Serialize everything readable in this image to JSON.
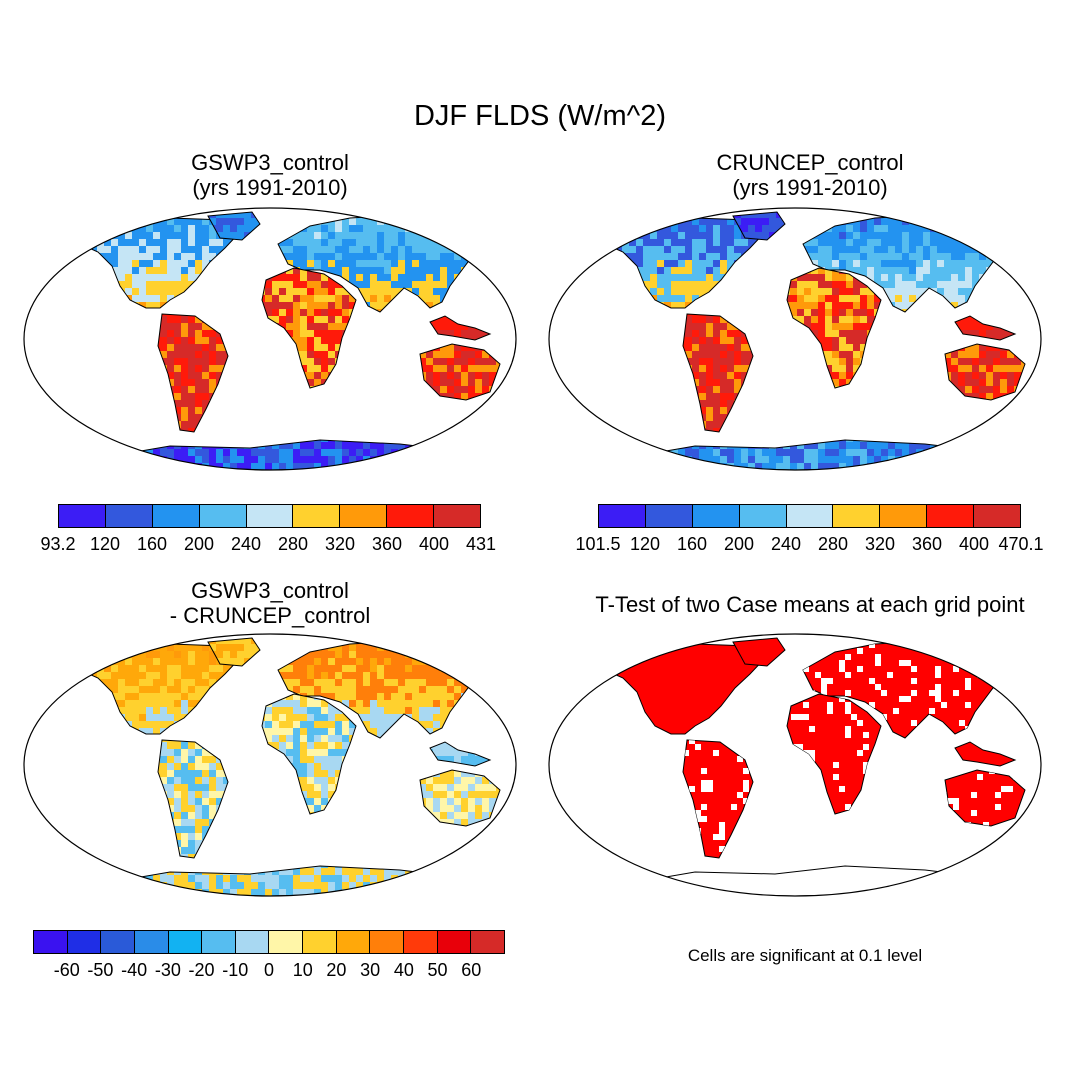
{
  "title": "DJF FLDS (W/m^2)",
  "panels": [
    {
      "id": "gswp3",
      "title_line1": "GSWP3_control",
      "title_line2": "(yrs 1991-2010)"
    },
    {
      "id": "cruncep",
      "title_line1": "CRUNCEP_control",
      "title_line2": "(yrs 1991-2010)"
    },
    {
      "id": "diff",
      "title_line1": "GSWP3_control",
      "title_line2": "- CRUNCEP_control"
    },
    {
      "id": "ttest",
      "title_line1": "T-Test of two Case means at each grid point",
      "title_line2": ""
    }
  ],
  "colorbars": {
    "gswp3": {
      "colors": [
        "#3c1df5",
        "#3358dd",
        "#2393f0",
        "#56bdf0",
        "#c5e5f5",
        "#ffd12e",
        "#ff9a0a",
        "#ff1a0a",
        "#d62a28"
      ],
      "labels": [
        "93.2",
        "120",
        "160",
        "200",
        "240",
        "280",
        "320",
        "360",
        "400",
        "431"
      ]
    },
    "cruncep": {
      "colors": [
        "#3c1df5",
        "#3358dd",
        "#2393f0",
        "#56bdf0",
        "#c5e5f5",
        "#ffd12e",
        "#ff9a0a",
        "#ff1a0a",
        "#d62a28"
      ],
      "labels": [
        "101.5",
        "120",
        "160",
        "200",
        "240",
        "280",
        "320",
        "360",
        "400",
        "470.1"
      ]
    },
    "diff": {
      "colors": [
        "#3a12f0",
        "#1f2ee6",
        "#2a5ad8",
        "#2a8ce8",
        "#12b2f2",
        "#56bdf0",
        "#a8d8f2",
        "#fff6a8",
        "#ffd12e",
        "#ffa80a",
        "#ff7f0a",
        "#ff3a0a",
        "#e8000a",
        "#d62a28"
      ],
      "labels": [
        "-60",
        "-50",
        "-40",
        "-30",
        "-20",
        "-10",
        "0",
        "10",
        "20",
        "30",
        "40",
        "50",
        "60"
      ]
    }
  },
  "note": "Cells are significant at 0.1 level"
}
